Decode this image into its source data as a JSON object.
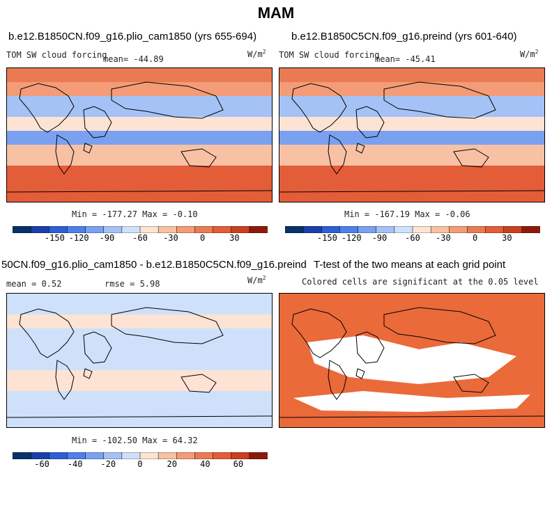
{
  "page_title": "MAM",
  "panels": [
    {
      "case_title": "b.e12.B1850CN.f09_g16.plio_cam1850 (yrs 655-694)",
      "variable": "TOM SW cloud forcing",
      "mean_text": "mean= -44.89",
      "units": "W/m",
      "units_sup": "2",
      "minmax_text": "Min = -177.27 Max =  -0.10",
      "colorbar_ticks": [
        "-150",
        "-120",
        "-90",
        "-60",
        "-30",
        "0",
        "30"
      ]
    },
    {
      "case_title": "b.e12.B1850C5CN.f09_g16.preind (yrs 601-640)",
      "variable": "TOM SW cloud forcing",
      "mean_text": "mean= -45.41",
      "units": "W/m",
      "units_sup": "2",
      "minmax_text": "Min = -167.19 Max =  -0.06",
      "colorbar_ticks": [
        "-150",
        "-120",
        "-90",
        "-60",
        "-30",
        "0",
        "30"
      ]
    },
    {
      "case_title": "50CN.f09_g16.plio_cam1850 - b.e12.B1850C5CN.f09_g16.preind",
      "mean_text": "mean =   0.52",
      "rmse_text": "rmse =   5.98",
      "units": "W/m",
      "units_sup": "2",
      "minmax_text": "Min = -102.50 Max =  64.32",
      "colorbar_ticks": [
        "-60",
        "-40",
        "-20",
        "0",
        "20",
        "40",
        "60"
      ]
    },
    {
      "case_title": "T-test of the two means at each grid point",
      "subtitle": "Colored cells are significant at the 0.05 level"
    }
  ],
  "colors": {
    "field_palette": [
      "#08306b",
      "#1a3fa8",
      "#2c5fd6",
      "#4f7fe8",
      "#7aa1f0",
      "#a4c2f5",
      "#cfe0fa",
      "#fde3d3",
      "#f8c1a4",
      "#f39c77",
      "#ea7a52",
      "#e35d38",
      "#c9401e",
      "#8c1a0a"
    ],
    "ttest_fill": "#ea6a3a",
    "background": "#ffffff"
  }
}
